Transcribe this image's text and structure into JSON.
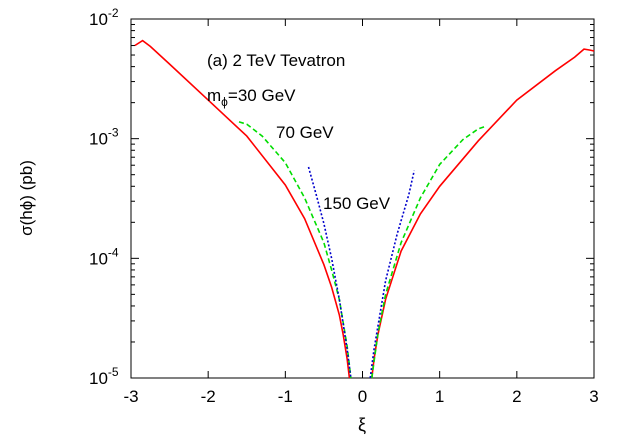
{
  "chart_data": {
    "type": "line",
    "annotation": "(a) 2 TeV Tevatron",
    "xlabel": "ξ",
    "ylabel": "σ(hϕ)   (pb)",
    "xlim": [
      -3,
      3
    ],
    "ylim": [
      1e-05,
      0.01
    ],
    "yscale": "log",
    "grid": false,
    "x_ticks": [
      "-3",
      "-2",
      "-1",
      "0",
      "1",
      "2",
      "3"
    ],
    "x_tick_values": [
      -3,
      -2,
      -1,
      0,
      1,
      2,
      3
    ],
    "y_ticks": [
      {
        "value": 1e-05,
        "base": "10",
        "exp": "-5"
      },
      {
        "value": 0.0001,
        "base": "10",
        "exp": "-4"
      },
      {
        "value": 0.001,
        "base": "10",
        "exp": "-3"
      },
      {
        "value": 0.01,
        "base": "10",
        "exp": "-2"
      }
    ],
    "series": [
      {
        "label_main": "m",
        "label_sub": "ϕ",
        "label_rest": "=30 GeV",
        "color": "#ff0000",
        "dash": "",
        "points": [
          [
            -2.95,
            0.006
          ],
          [
            -2.85,
            0.0066
          ],
          [
            -2.75,
            0.0059
          ],
          [
            -2.5,
            0.0042
          ],
          [
            -2.0,
            0.0021
          ],
          [
            -1.5,
            0.00105
          ],
          [
            -1.0,
            0.00041
          ],
          [
            -0.75,
            0.000215
          ],
          [
            -0.5,
            8.85e-05
          ],
          [
            -0.4,
            5.75e-05
          ],
          [
            -0.3,
            3.35e-05
          ],
          [
            -0.25,
            2.3e-05
          ],
          [
            -0.2,
            1.45e-05
          ],
          [
            -0.17,
            1e-05
          ],
          [
            0.12,
            1e-05
          ],
          [
            0.15,
            1.45e-05
          ],
          [
            0.2,
            2.3e-05
          ],
          [
            0.3,
            4.55e-05
          ],
          [
            0.5,
            0.000115
          ],
          [
            0.75,
            0.000235
          ],
          [
            1.0,
            0.0004
          ],
          [
            1.5,
            0.00096
          ],
          [
            2.0,
            0.0021
          ],
          [
            2.5,
            0.0037
          ],
          [
            2.75,
            0.0048
          ],
          [
            2.87,
            0.0056
          ],
          [
            2.95,
            0.0055
          ],
          [
            3.0,
            0.0054
          ]
        ]
      },
      {
        "label": "70 GeV",
        "color": "#00dd00",
        "dash": "5,3",
        "points": [
          [
            -1.6,
            0.00138
          ],
          [
            -1.5,
            0.00132
          ],
          [
            -1.3,
            0.00105
          ],
          [
            -1.0,
            0.00063
          ],
          [
            -0.75,
            0.00032
          ],
          [
            -0.5,
            0.000135
          ],
          [
            -0.4,
            8e-05
          ],
          [
            -0.3,
            4.5e-05
          ],
          [
            -0.2,
            1.85e-05
          ],
          [
            -0.15,
            1e-05
          ],
          [
            0.12,
            1e-05
          ],
          [
            0.2,
            2.35e-05
          ],
          [
            0.3,
            5e-05
          ],
          [
            0.5,
            0.000135
          ],
          [
            0.75,
            0.00032
          ],
          [
            1.0,
            0.00061
          ],
          [
            1.3,
            0.00098
          ],
          [
            1.5,
            0.00121
          ],
          [
            1.6,
            0.00127
          ]
        ]
      },
      {
        "label": "150 GeV",
        "color": "#0000cc",
        "dash": "2,2",
        "points": [
          [
            -0.7,
            0.00058
          ],
          [
            -0.6,
            0.00034
          ],
          [
            -0.5,
            0.000195
          ],
          [
            -0.4,
            0.0001
          ],
          [
            -0.3,
            4.5e-05
          ],
          [
            -0.2,
            1.75e-05
          ],
          [
            -0.15,
            1e-05
          ],
          [
            0.1,
            1e-05
          ],
          [
            0.15,
            1.75e-05
          ],
          [
            0.3,
            6.5e-05
          ],
          [
            0.45,
            0.00016
          ],
          [
            0.6,
            0.00034
          ],
          [
            0.67,
            0.00054
          ]
        ]
      }
    ]
  }
}
